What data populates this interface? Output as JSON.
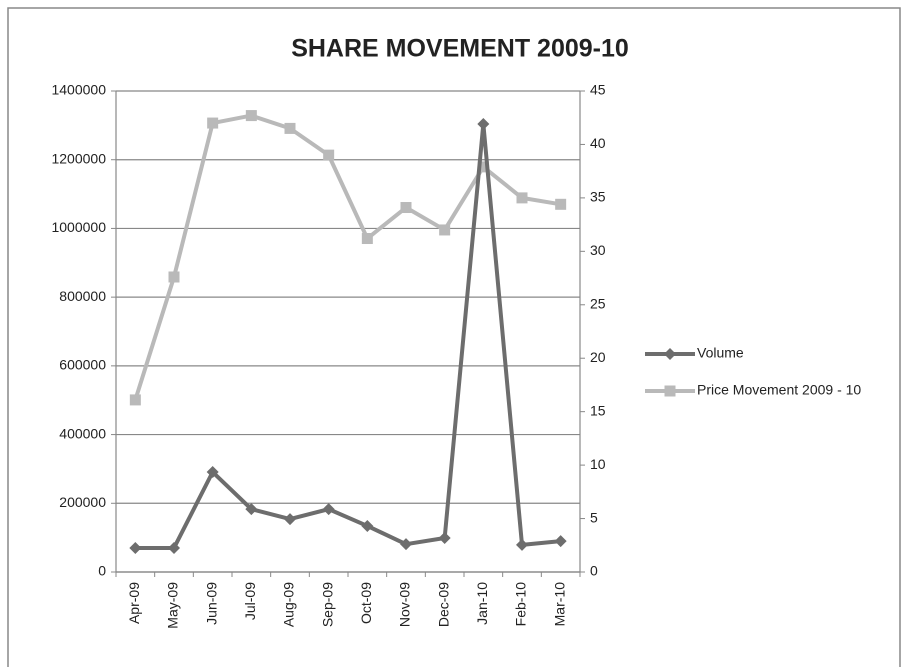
{
  "chart_data": {
    "type": "line",
    "title": "SHARE MOVEMENT 2009-10",
    "categories": [
      "Apr-09",
      "May-09",
      "Jun-09",
      "Jul-09",
      "Aug-09",
      "Sep-09",
      "Oct-09",
      "Nov-09",
      "Dec-09",
      "Jan-10",
      "Feb-10",
      "Mar-10"
    ],
    "series": [
      {
        "name": "Volume",
        "color": "#6d6d6d",
        "marker": "diamond",
        "values": [
          70000,
          70000,
          291000,
          183000,
          154000,
          183000,
          134000,
          81000,
          99000,
          1304000,
          79000,
          90000
        ]
      },
      {
        "name": "Price Movement 2009 - 10",
        "color": "#b9b9b9",
        "marker": "square",
        "axis": "y2",
        "values": [
          16.1,
          27.6,
          42.0,
          42.7,
          41.5,
          39.0,
          31.2,
          34.1,
          32.0,
          37.9,
          35.0,
          34.4
        ]
      }
    ],
    "ylim": [
      0,
      1400000
    ],
    "yticks": [
      0,
      200000,
      400000,
      600000,
      800000,
      1000000,
      1200000,
      1400000
    ],
    "y2lim": [
      0,
      45
    ],
    "y2ticks": [
      0,
      5,
      10,
      15,
      20,
      25,
      30,
      35,
      40,
      45
    ],
    "grid": true,
    "legend": "right"
  }
}
